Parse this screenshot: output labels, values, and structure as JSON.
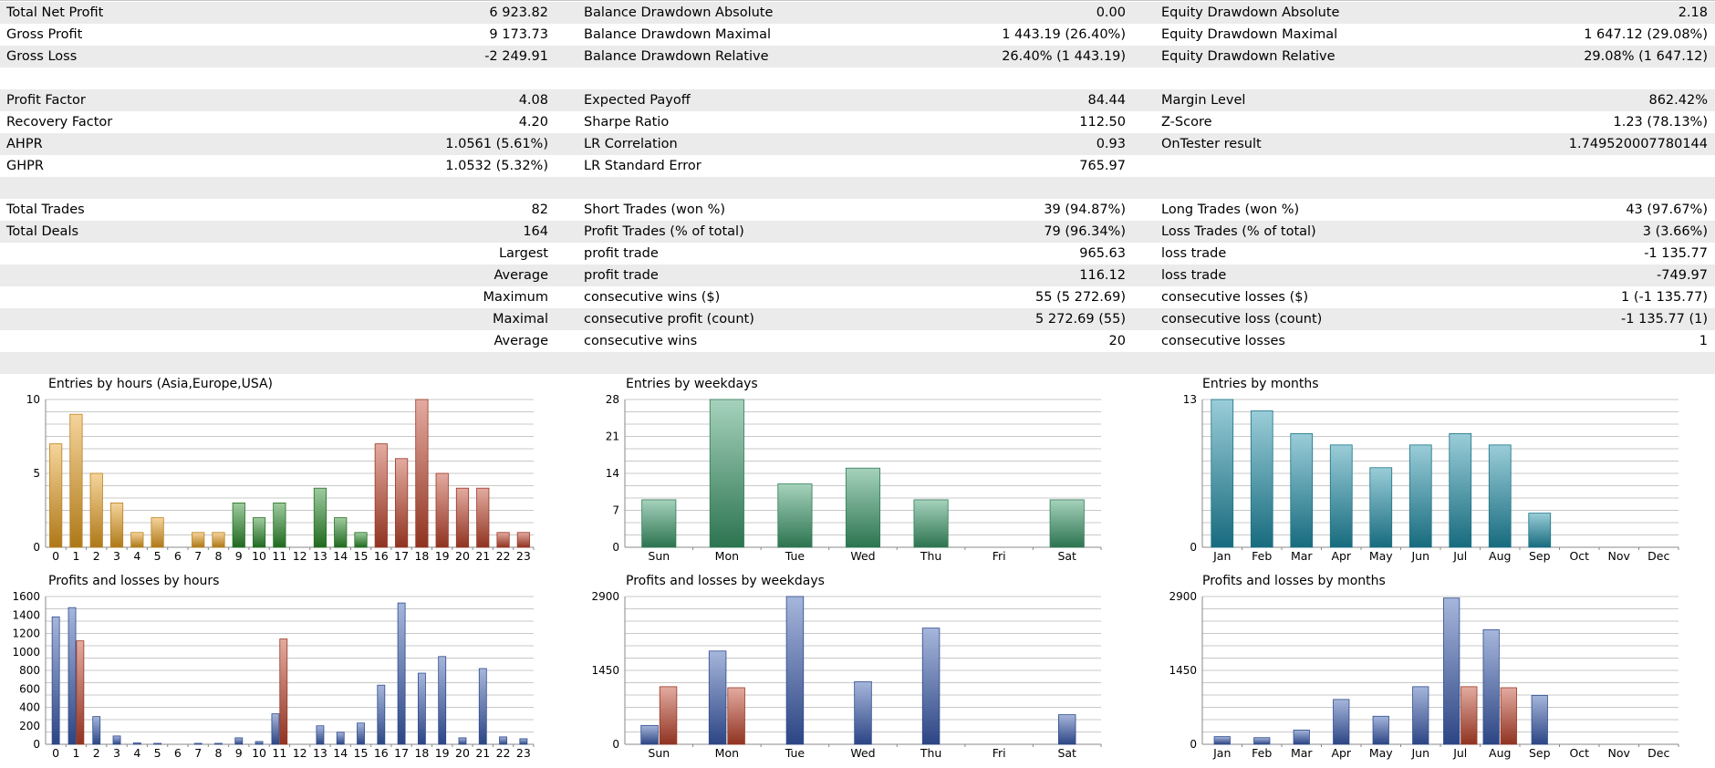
{
  "stats": {
    "rows": [
      {
        "alt": true,
        "c": [
          "Total Net Profit",
          "6 923.82",
          "Balance Drawdown Absolute",
          "0.00",
          "Equity Drawdown Absolute",
          "2.18"
        ]
      },
      {
        "alt": false,
        "c": [
          "Gross Profit",
          "9 173.73",
          "Balance Drawdown Maximal",
          "1 443.19 (26.40%)",
          "Equity Drawdown Maximal",
          "1 647.12 (29.08%)"
        ]
      },
      {
        "alt": true,
        "c": [
          "Gross Loss",
          "-2 249.91",
          "Balance Drawdown Relative",
          "26.40% (1 443.19)",
          "Equity Drawdown Relative",
          "29.08% (1 647.12)"
        ]
      },
      {
        "alt": false,
        "gap": true,
        "c": [
          "",
          "",
          "",
          "",
          "",
          ""
        ]
      },
      {
        "alt": true,
        "c": [
          "Profit Factor",
          "4.08",
          "Expected Payoff",
          "84.44",
          "Margin Level",
          "862.42%"
        ]
      },
      {
        "alt": false,
        "c": [
          "Recovery Factor",
          "4.20",
          "Sharpe Ratio",
          "112.50",
          "Z-Score",
          "1.23 (78.13%)"
        ]
      },
      {
        "alt": true,
        "c": [
          "AHPR",
          "1.0561 (5.61%)",
          "LR Correlation",
          "0.93",
          "OnTester result",
          "1.749520007780144"
        ]
      },
      {
        "alt": false,
        "c": [
          "GHPR",
          "1.0532 (5.32%)",
          "LR Standard Error",
          "765.97",
          "",
          ""
        ]
      },
      {
        "alt": true,
        "gap": true,
        "c": [
          "",
          "",
          "",
          "",
          "",
          ""
        ]
      },
      {
        "alt": false,
        "c": [
          "Total Trades",
          "82",
          "Short Trades (won %)",
          "39 (94.87%)",
          "Long Trades (won %)",
          "43 (97.67%)"
        ]
      },
      {
        "alt": true,
        "c": [
          "Total Deals",
          "164",
          "Profit Trades (% of total)",
          "79 (96.34%)",
          "Loss Trades (% of total)",
          "3 (3.66%)"
        ]
      },
      {
        "alt": false,
        "c": [
          "",
          "Largest",
          "profit trade",
          "965.63",
          "loss trade",
          "-1 135.77"
        ]
      },
      {
        "alt": true,
        "c": [
          "",
          "Average",
          "profit trade",
          "116.12",
          "loss trade",
          "-749.97"
        ]
      },
      {
        "alt": false,
        "c": [
          "",
          "Maximum",
          "consecutive wins ($)",
          "55 (5 272.69)",
          "consecutive losses ($)",
          "1 (-1 135.77)"
        ]
      },
      {
        "alt": true,
        "c": [
          "",
          "Maximal",
          "consecutive profit (count)",
          "5 272.69 (55)",
          "consecutive loss (count)",
          "-1 135.77 (1)"
        ]
      },
      {
        "alt": false,
        "c": [
          "",
          "Average",
          "consecutive wins",
          "20",
          "consecutive losses",
          "1"
        ]
      },
      {
        "alt": true,
        "gap": true,
        "c": [
          "",
          "",
          "",
          "",
          "",
          ""
        ]
      }
    ]
  },
  "chart_data": [
    {
      "id": "entries-hours",
      "type": "bar",
      "title": "Entries by hours (Asia,Europe,USA)",
      "categories": [
        "0",
        "1",
        "2",
        "3",
        "4",
        "5",
        "6",
        "7",
        "8",
        "9",
        "10",
        "11",
        "12",
        "13",
        "14",
        "15",
        "16",
        "17",
        "18",
        "19",
        "20",
        "21",
        "22",
        "23"
      ],
      "values": [
        7,
        9,
        5,
        3,
        1,
        2,
        0,
        1,
        1,
        3,
        2,
        3,
        0,
        4,
        2,
        1,
        7,
        6,
        10,
        5,
        4,
        4,
        1,
        1
      ],
      "yticks": [
        0,
        5,
        10
      ],
      "ylim": [
        0,
        10
      ],
      "grid": true,
      "colors": {
        "asia": "#e8a020",
        "europe": "#2a8c2a",
        "usa": "#c0442c"
      }
    },
    {
      "id": "entries-weekdays",
      "type": "bar",
      "title": "Entries by weekdays",
      "categories": [
        "Sun",
        "Mon",
        "Tue",
        "Wed",
        "Thu",
        "Fri",
        "Sat"
      ],
      "values": [
        9,
        28,
        12,
        15,
        9,
        0,
        9
      ],
      "yticks": [
        0,
        7,
        14,
        21,
        28
      ],
      "ylim": [
        0,
        28
      ],
      "grid": true,
      "colors": {
        "bar": "#3a9a6a"
      }
    },
    {
      "id": "entries-months",
      "type": "bar",
      "title": "Entries by months",
      "categories": [
        "Jan",
        "Feb",
        "Mar",
        "Apr",
        "May",
        "Jun",
        "Jul",
        "Aug",
        "Sep",
        "Oct",
        "Nov",
        "Dec"
      ],
      "values": [
        13,
        12,
        10,
        9,
        7,
        9,
        10,
        9,
        3,
        0,
        0,
        0
      ],
      "yticks": [
        0,
        13
      ],
      "ylim": [
        0,
        13
      ],
      "grid": true,
      "colors": {
        "bar": "#1f8fa8"
      }
    },
    {
      "id": "pl-hours",
      "type": "bar",
      "title": "Profits and losses by hours",
      "categories": [
        "0",
        "1",
        "2",
        "3",
        "4",
        "5",
        "6",
        "7",
        "8",
        "9",
        "10",
        "11",
        "12",
        "13",
        "14",
        "15",
        "16",
        "17",
        "18",
        "19",
        "20",
        "21",
        "22",
        "23"
      ],
      "series": [
        {
          "values": [
            1380,
            1480,
            300,
            90,
            15,
            10,
            0,
            10,
            10,
            70,
            30,
            330,
            0,
            200,
            130,
            230,
            640,
            1530,
            770,
            950,
            70,
            820,
            80,
            60
          ]
        },
        {
          "values": [
            0,
            1120,
            0,
            0,
            0,
            0,
            0,
            0,
            0,
            0,
            0,
            1140,
            0,
            0,
            0,
            0,
            0,
            0,
            0,
            0,
            0,
            0,
            0,
            0
          ]
        }
      ],
      "yticks": [
        0,
        200,
        400,
        600,
        800,
        1000,
        1200,
        1400,
        1600
      ],
      "ylim": [
        0,
        1600
      ],
      "grid": true,
      "colors": {
        "profit": "#3a5cb0",
        "loss": "#c0442c"
      }
    },
    {
      "id": "pl-weekdays",
      "type": "bar",
      "title": "Profits and losses by weekdays",
      "categories": [
        "Sun",
        "Mon",
        "Tue",
        "Wed",
        "Thu",
        "Fri",
        "Sat"
      ],
      "series": [
        {
          "values": [
            370,
            1830,
            2900,
            1230,
            2280,
            0,
            580
          ]
        },
        {
          "values": [
            1130,
            1110,
            0,
            0,
            0,
            0,
            0
          ]
        }
      ],
      "yticks": [
        0,
        1450,
        2900
      ],
      "ylim": [
        0,
        2900
      ],
      "grid": true,
      "colors": {
        "profit": "#3a5cb0",
        "loss": "#c0442c"
      }
    },
    {
      "id": "pl-months",
      "type": "bar",
      "title": "Profits and losses by months",
      "categories": [
        "Jan",
        "Feb",
        "Mar",
        "Apr",
        "May",
        "Jun",
        "Jul",
        "Aug",
        "Sep",
        "Oct",
        "Nov",
        "Dec"
      ],
      "series": [
        {
          "values": [
            150,
            130,
            280,
            880,
            550,
            1130,
            2870,
            2250,
            960,
            0,
            0,
            0
          ]
        },
        {
          "values": [
            0,
            0,
            0,
            0,
            0,
            0,
            1130,
            1110,
            0,
            0,
            0,
            0
          ]
        }
      ],
      "yticks": [
        0,
        1450,
        2900
      ],
      "ylim": [
        0,
        2900
      ],
      "grid": true,
      "colors": {
        "profit": "#3a5cb0",
        "loss": "#c0442c"
      }
    }
  ]
}
